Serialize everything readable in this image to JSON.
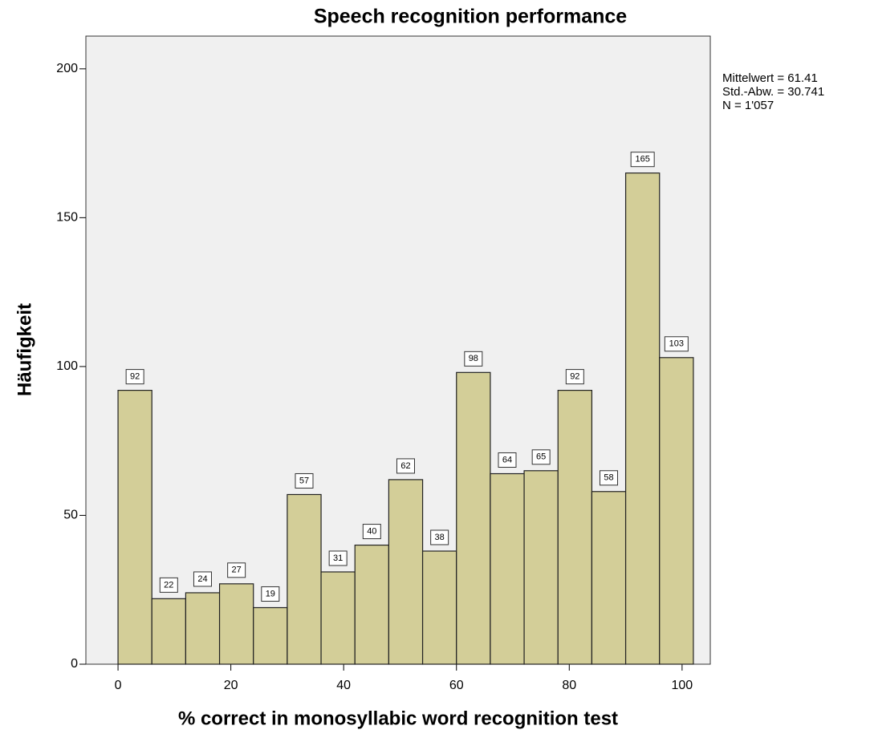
{
  "chart_data": {
    "type": "histogram",
    "title": "Speech recognition performance",
    "x_label": "% correct in monosyllabic word recognition test",
    "y_label": "Häufigkeit",
    "bins": [
      0,
      6,
      12,
      18,
      24,
      30,
      36,
      42,
      48,
      54,
      60,
      66,
      72,
      78,
      84,
      90,
      96,
      102
    ],
    "counts": [
      92,
      22,
      24,
      27,
      19,
      57,
      31,
      40,
      62,
      38,
      98,
      64,
      65,
      92,
      58,
      165,
      103
    ],
    "color": "#d3ce98",
    "xlim": [
      -5.7,
      105
    ],
    "xticks": [
      0,
      20,
      40,
      60,
      80,
      100
    ],
    "ylim": [
      0,
      211
    ],
    "yticks": [
      0,
      50,
      100,
      150,
      200
    ],
    "annotations": [
      "Mittelwert = 61.41",
      "Std.-Abw. = 30.741",
      "N = 1'057"
    ]
  }
}
